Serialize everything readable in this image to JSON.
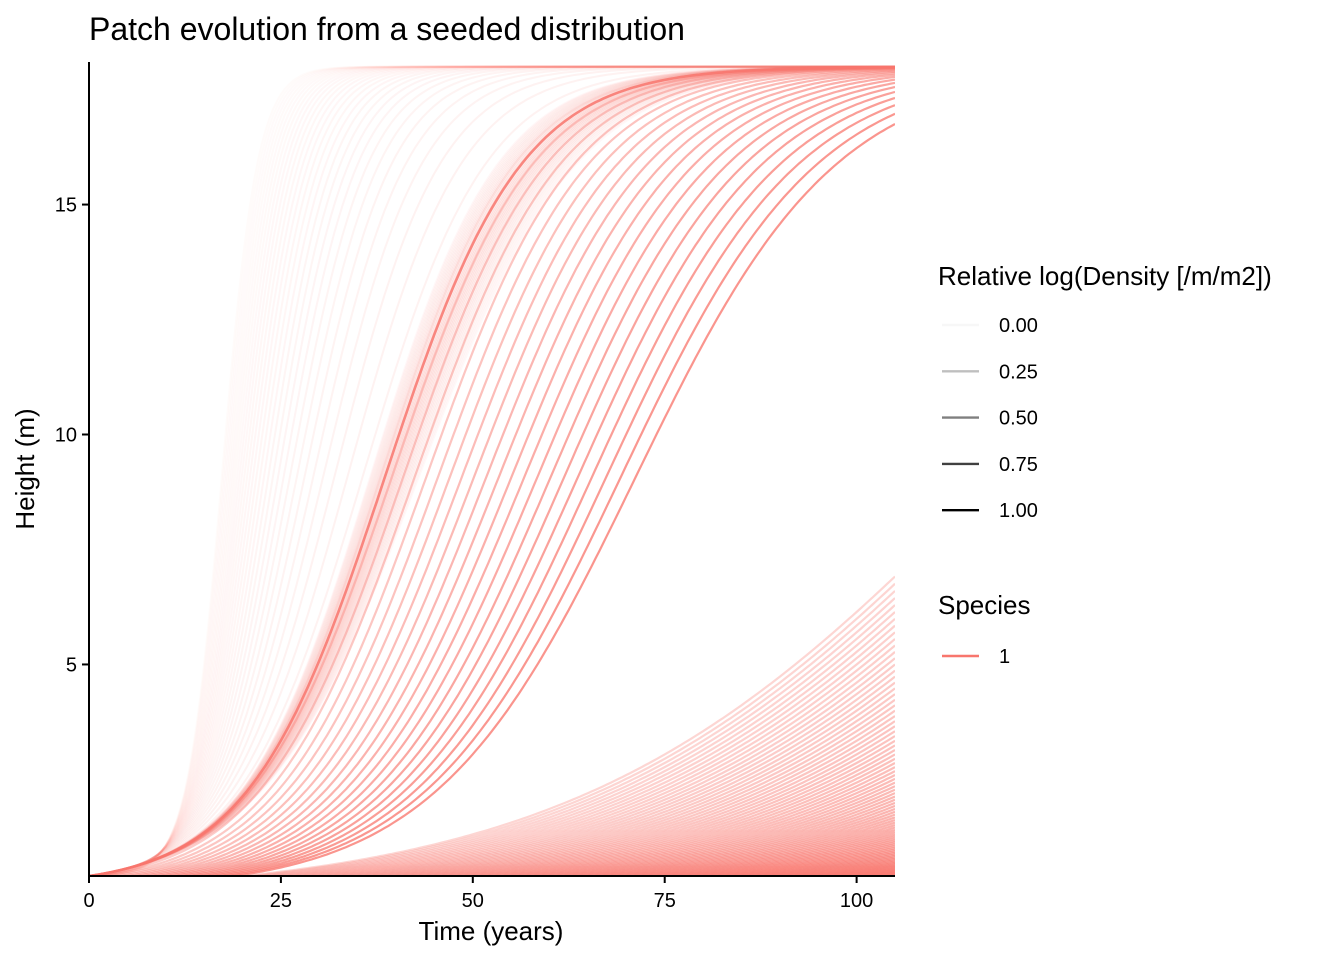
{
  "chart_data": {
    "type": "line",
    "title": "Patch evolution from a seeded distribution",
    "xlabel": "Time (years)",
    "ylabel": "Height (m)",
    "xlim": [
      0,
      105
    ],
    "ylim": [
      0.4,
      18.1
    ],
    "xticks": [
      0,
      25,
      50,
      75,
      100
    ],
    "xtick_labels": [
      "0",
      "25",
      "50",
      "75",
      "100"
    ],
    "yticks": [
      5,
      10,
      15
    ],
    "ytick_labels": [
      "5",
      "10",
      "15"
    ],
    "grid": false,
    "series_color": "#F8766D",
    "legend_alpha": {
      "title": "Relative log(Density [/m/m2])",
      "labels": [
        "0.00",
        "0.25",
        "0.50",
        "0.75",
        "1.00"
      ],
      "values": [
        0.0,
        0.25,
        0.5,
        0.75,
        1.0
      ]
    },
    "legend_species": {
      "title": "Species",
      "labels": [
        "1"
      ]
    },
    "cohort_start_times": [
      0,
      1,
      2,
      3,
      4,
      5,
      6,
      7,
      8,
      9,
      10,
      11,
      12,
      13,
      14,
      15,
      16,
      17,
      18,
      19,
      20,
      21,
      22,
      23,
      24,
      25,
      26,
      27,
      28,
      29,
      30,
      31,
      32,
      33,
      34,
      35,
      36,
      37,
      38,
      39,
      40,
      41,
      42,
      43,
      44,
      45,
      46,
      47,
      48,
      49,
      50,
      51,
      52,
      53,
      54,
      55,
      56,
      57,
      58,
      59,
      60,
      61,
      62,
      63,
      64,
      65,
      66,
      67,
      68,
      69,
      70,
      71,
      72,
      73,
      74,
      75,
      76,
      77,
      78,
      79,
      80,
      81,
      82,
      83,
      84,
      85,
      86,
      87,
      88,
      89,
      90,
      91,
      92,
      93,
      94,
      95,
      96,
      97,
      98,
      99,
      100,
      101,
      102,
      103,
      104
    ]
  }
}
